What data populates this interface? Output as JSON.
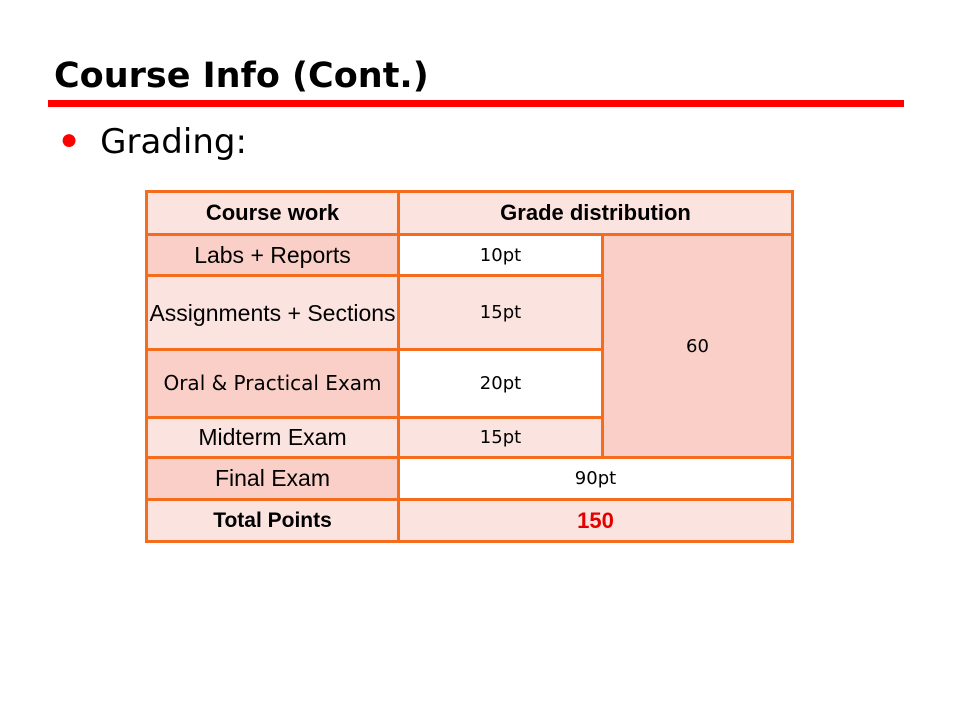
{
  "slide": {
    "title": "Course Info (Cont.)",
    "bullet_text": "Grading:",
    "accent_color": "#ff0000",
    "table_border_color": "#f46c1c"
  },
  "table": {
    "headers": [
      "Course work",
      "Grade distribution"
    ],
    "rows": [
      {
        "course_work": "Labs + Reports",
        "points": "10pt"
      },
      {
        "course_work": "Assignments + Sections",
        "points": "15pt"
      },
      {
        "course_work": "Oral & Practical Exam",
        "points": "20pt"
      },
      {
        "course_work": "Midterm Exam",
        "points": "15pt"
      }
    ],
    "subtotal": "60",
    "final": {
      "course_work": "Final Exam",
      "points": "90pt"
    },
    "total": {
      "label": "Total Points",
      "value": "150"
    }
  }
}
